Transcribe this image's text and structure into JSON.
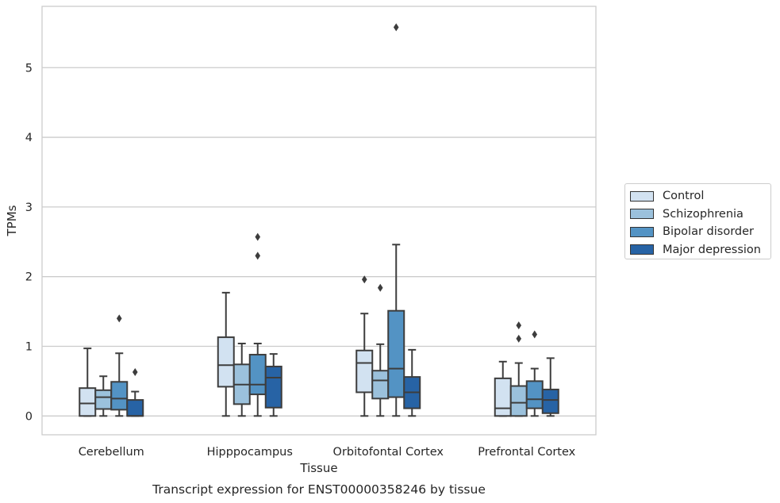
{
  "chart_data": {
    "type": "box",
    "title": "Transcript expression for ENST00000358246 by tissue",
    "xlabel": "Tissue",
    "ylabel": "TPMs",
    "ylim": [
      -0.27,
      5.88
    ],
    "yticks": [
      0,
      1,
      2,
      3,
      4,
      5
    ],
    "grid": "horizontal",
    "legend_position": "right",
    "categories": [
      "Cerebellum",
      "Hipppocampus",
      "Orbitofontal Cortex",
      "Prefrontal Cortex"
    ],
    "series": [
      {
        "name": "Control",
        "color": "#d2e2f1",
        "boxes": [
          {
            "whislo": 0.0,
            "q1": 0.0,
            "med": 0.18,
            "q3": 0.4,
            "whishi": 0.97,
            "fliers": []
          },
          {
            "whislo": 0.0,
            "q1": 0.42,
            "med": 0.73,
            "q3": 1.13,
            "whishi": 1.77,
            "fliers": []
          },
          {
            "whislo": 0.0,
            "q1": 0.34,
            "med": 0.76,
            "q3": 0.94,
            "whishi": 1.47,
            "fliers": [
              1.96
            ]
          },
          {
            "whislo": 0.0,
            "q1": 0.0,
            "med": 0.11,
            "q3": 0.54,
            "whishi": 0.78,
            "fliers": []
          }
        ]
      },
      {
        "name": "Schizophrenia",
        "color": "#9bc1dc",
        "boxes": [
          {
            "whislo": 0.0,
            "q1": 0.1,
            "med": 0.27,
            "q3": 0.37,
            "whishi": 0.57,
            "fliers": []
          },
          {
            "whislo": 0.0,
            "q1": 0.17,
            "med": 0.45,
            "q3": 0.74,
            "whishi": 1.04,
            "fliers": []
          },
          {
            "whislo": 0.0,
            "q1": 0.25,
            "med": 0.51,
            "q3": 0.65,
            "whishi": 1.03,
            "fliers": [
              1.84
            ]
          },
          {
            "whislo": 0.0,
            "q1": 0.0,
            "med": 0.19,
            "q3": 0.43,
            "whishi": 0.76,
            "fliers": [
              1.11,
              1.3
            ]
          }
        ]
      },
      {
        "name": "Bipolar disorder",
        "color": "#5393c4",
        "boxes": [
          {
            "whislo": 0.0,
            "q1": 0.09,
            "med": 0.25,
            "q3": 0.49,
            "whishi": 0.9,
            "fliers": [
              1.4
            ]
          },
          {
            "whislo": 0.0,
            "q1": 0.31,
            "med": 0.45,
            "q3": 0.88,
            "whishi": 1.04,
            "fliers": [
              2.3,
              2.57
            ]
          },
          {
            "whislo": 0.0,
            "q1": 0.27,
            "med": 0.68,
            "q3": 1.51,
            "whishi": 2.46,
            "fliers": [
              5.58
            ]
          },
          {
            "whislo": 0.0,
            "q1": 0.11,
            "med": 0.24,
            "q3": 0.5,
            "whishi": 0.68,
            "fliers": [
              1.17
            ]
          }
        ]
      },
      {
        "name": "Major depression",
        "color": "#2763a5",
        "boxes": [
          {
            "whislo": 0.0,
            "q1": 0.0,
            "med": 0.0,
            "q3": 0.23,
            "whishi": 0.35,
            "fliers": [
              0.63
            ]
          },
          {
            "whislo": 0.0,
            "q1": 0.12,
            "med": 0.55,
            "q3": 0.71,
            "whishi": 0.89,
            "fliers": []
          },
          {
            "whislo": 0.0,
            "q1": 0.11,
            "med": 0.34,
            "q3": 0.56,
            "whishi": 0.95,
            "fliers": []
          },
          {
            "whislo": 0.0,
            "q1": 0.04,
            "med": 0.23,
            "q3": 0.38,
            "whishi": 0.83,
            "fliers": []
          }
        ]
      }
    ]
  }
}
